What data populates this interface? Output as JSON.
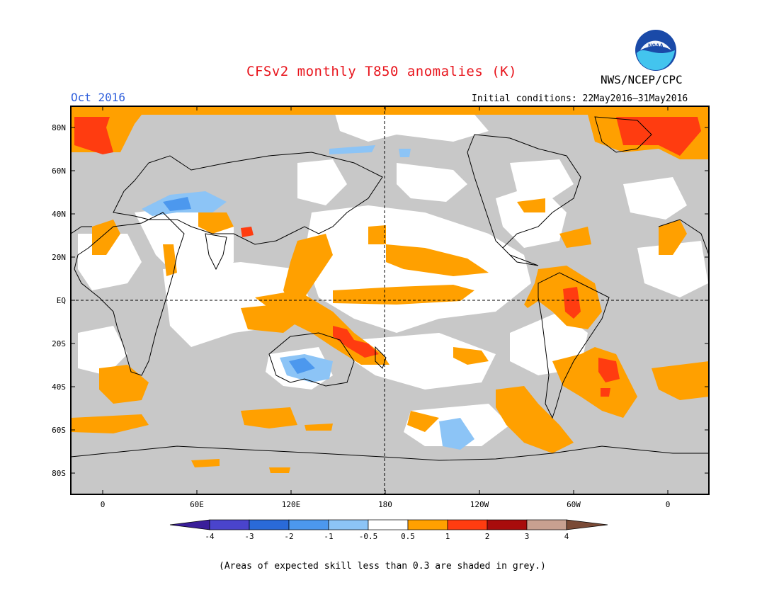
{
  "title": "CFSv2 monthly T850 anomalies (K)",
  "agency": "NWS/NCEP/CPC",
  "logo_text": "NOAA",
  "valid_month": "Oct 2016",
  "initial_conditions": "Initial conditions: 22May2016–31May2016",
  "note": "(Areas of expected skill less than 0.3 are shaded in grey.)",
  "colors": {
    "title": "#e8141c",
    "month": "#2f5fdc",
    "no_skill_grey": "#c8c8c8",
    "ocean_near_zero": "#ffffff"
  },
  "map": {
    "lat_labels": [
      "80N",
      "60N",
      "40N",
      "20N",
      "EQ",
      "20S",
      "40S",
      "60S",
      "80S"
    ],
    "lon_labels": [
      "0",
      "60E",
      "120E",
      "180",
      "120W",
      "60W",
      "0"
    ],
    "equator_label": "EQ",
    "dateline_label": "180"
  },
  "colorbar": {
    "labels": [
      "-4",
      "-3",
      "-2",
      "-1",
      "-0.5",
      "0.5",
      "1",
      "2",
      "3",
      "4"
    ],
    "colors": [
      "#3a1e9a",
      "#4a44cc",
      "#2a6ad8",
      "#4c98ee",
      "#8cc4f6",
      "#ffffff",
      "#ffa000",
      "#ff3c10",
      "#a80c0c",
      "#c8a090",
      "#7a4a36"
    ]
  },
  "anomaly_regions": [
    {
      "name": "arctic-atlantic",
      "level": "1 to 2"
    },
    {
      "name": "arctic-greenland",
      "level": "1 to 2"
    },
    {
      "name": "western-pacific",
      "level": "0.5 to 1"
    },
    {
      "name": "equatorial-pacific",
      "level": "0.5 to 1"
    },
    {
      "name": "amazon",
      "level": "1 to 2"
    },
    {
      "name": "south-atlantic",
      "level": "1 to 2"
    },
    {
      "name": "coral-sea",
      "level": "1 to 2"
    },
    {
      "name": "australia",
      "level": "-1 to -0.5"
    },
    {
      "name": "europe",
      "level": "-1 to -0.5"
    },
    {
      "name": "south-pacific",
      "level": "-1 to -0.5"
    }
  ]
}
